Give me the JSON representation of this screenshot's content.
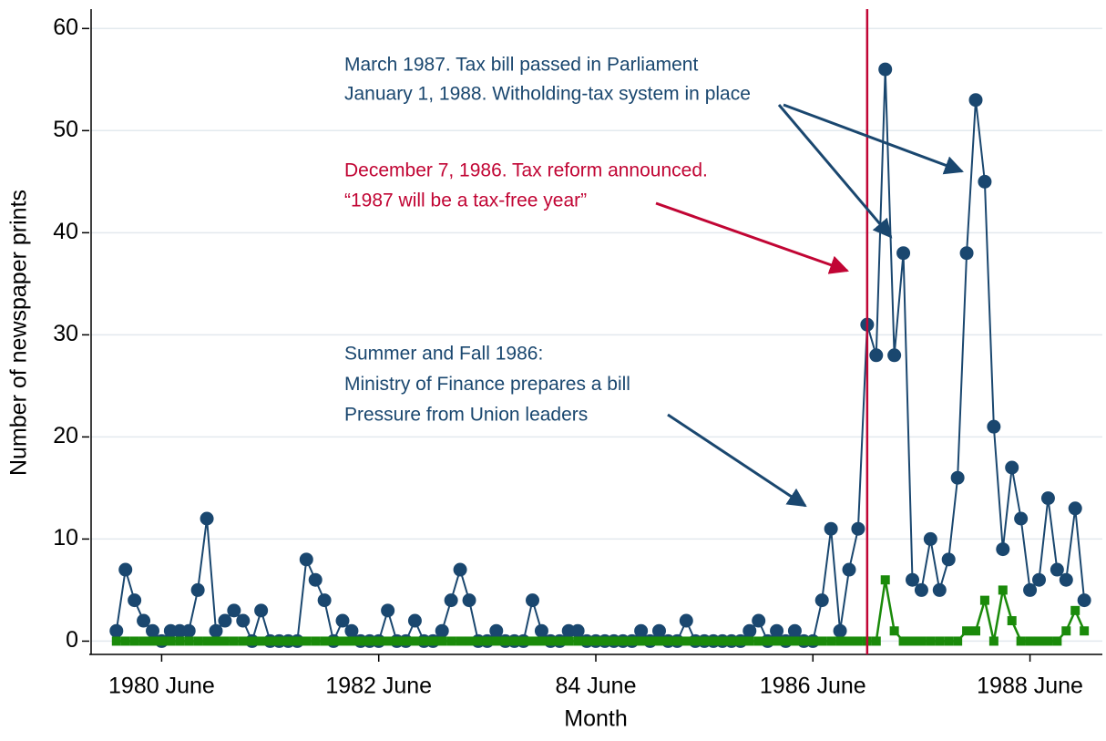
{
  "chart_data": {
    "type": "line",
    "x_label": "Month",
    "y_label": "Number of newspaper prints",
    "xlim": [
      "1979-10",
      "1989-02"
    ],
    "ylim": [
      -1.3,
      61.9
    ],
    "xticks": [
      {
        "value": "1980-06",
        "label": "1980 June"
      },
      {
        "value": "1982-06",
        "label": "1982 June"
      },
      {
        "value": "1984-06",
        "label": "84 June"
      },
      {
        "value": "1986-06",
        "label": "1986 June"
      },
      {
        "value": "1988-06",
        "label": "1988 June"
      }
    ],
    "yticks": [
      0,
      10,
      20,
      30,
      40,
      50,
      60
    ],
    "grid": true,
    "x": [
      "1980-01",
      "1980-02",
      "1980-03",
      "1980-04",
      "1980-05",
      "1980-06",
      "1980-07",
      "1980-08",
      "1980-09",
      "1980-10",
      "1980-11",
      "1980-12",
      "1981-01",
      "1981-02",
      "1981-03",
      "1981-04",
      "1981-05",
      "1981-06",
      "1981-07",
      "1981-08",
      "1981-09",
      "1981-10",
      "1981-11",
      "1981-12",
      "1982-01",
      "1982-02",
      "1982-03",
      "1982-04",
      "1982-05",
      "1982-06",
      "1982-07",
      "1982-08",
      "1982-09",
      "1982-10",
      "1982-11",
      "1982-12",
      "1983-01",
      "1983-02",
      "1983-03",
      "1983-04",
      "1983-05",
      "1983-06",
      "1983-07",
      "1983-08",
      "1983-09",
      "1983-10",
      "1983-11",
      "1983-12",
      "1984-01",
      "1984-02",
      "1984-03",
      "1984-04",
      "1984-05",
      "1984-06",
      "1984-07",
      "1984-08",
      "1984-09",
      "1984-10",
      "1984-11",
      "1984-12",
      "1985-01",
      "1985-02",
      "1985-03",
      "1985-04",
      "1985-05",
      "1985-06",
      "1985-07",
      "1985-08",
      "1985-09",
      "1985-10",
      "1985-11",
      "1985-12",
      "1986-01",
      "1986-02",
      "1986-03",
      "1986-04",
      "1986-05",
      "1986-06",
      "1986-07",
      "1986-08",
      "1986-09",
      "1986-10",
      "1986-11",
      "1986-12",
      "1987-01",
      "1987-02",
      "1987-03",
      "1987-04",
      "1987-05",
      "1987-06",
      "1987-07",
      "1987-08",
      "1987-09",
      "1987-10",
      "1987-11",
      "1987-12",
      "1988-01",
      "1988-02",
      "1988-03",
      "1988-04",
      "1988-05",
      "1988-06",
      "1988-07",
      "1988-08",
      "1988-09",
      "1988-10",
      "1988-11",
      "1988-12"
    ],
    "series": [
      {
        "color": "#1a476f",
        "marker": "circle",
        "values": [
          1,
          7,
          4,
          2,
          1,
          0,
          1,
          1,
          1,
          5,
          12,
          1,
          2,
          3,
          2,
          0,
          3,
          0,
          0,
          0,
          0,
          8,
          6,
          4,
          0,
          2,
          1,
          0,
          0,
          0,
          3,
          0,
          0,
          2,
          0,
          0,
          1,
          4,
          7,
          4,
          0,
          0,
          1,
          0,
          0,
          0,
          4,
          1,
          0,
          0,
          1,
          1,
          0,
          0,
          0,
          0,
          0,
          0,
          1,
          0,
          1,
          0,
          0,
          2,
          0,
          0,
          0,
          0,
          0,
          0,
          1,
          2,
          0,
          1,
          0,
          1,
          0,
          0,
          4,
          11,
          1,
          7,
          11,
          31,
          28,
          56,
          28,
          38,
          6,
          5,
          10,
          5,
          8,
          16,
          38,
          53,
          45,
          21,
          9,
          17,
          12,
          5,
          6,
          14,
          7,
          6,
          13,
          4
        ]
      },
      {
        "color": "#1a8a0a",
        "marker": "square",
        "values": [
          0,
          0,
          0,
          0,
          0,
          0,
          0,
          0,
          0,
          0,
          0,
          0,
          0,
          0,
          0,
          0,
          0,
          0,
          0,
          0,
          0,
          0,
          0,
          0,
          0,
          0,
          0,
          0,
          0,
          0,
          0,
          0,
          0,
          0,
          0,
          0,
          0,
          0,
          0,
          0,
          0,
          0,
          0,
          0,
          0,
          0,
          0,
          0,
          0,
          0,
          0,
          0,
          0,
          0,
          0,
          0,
          0,
          0,
          0,
          0,
          0,
          0,
          0,
          0,
          0,
          0,
          0,
          0,
          0,
          0,
          0,
          0,
          0,
          0,
          0,
          0,
          0,
          0,
          0,
          0,
          0,
          0,
          0,
          0,
          0,
          6,
          1,
          0,
          0,
          0,
          0,
          0,
          0,
          0,
          1,
          1,
          4,
          0,
          5,
          2,
          0,
          0,
          0,
          0,
          0,
          1,
          3,
          1
        ]
      }
    ],
    "vline": {
      "x": "1986-12",
      "color": "#c10534"
    },
    "annotations": [
      {
        "color": "#1a476f",
        "lines": [
          "March 1987. Tax bill passed in Parliament",
          "January 1, 1988. Witholding-tax system in place"
        ]
      },
      {
        "color": "#c10534",
        "lines": [
          "December 7, 1986. Tax reform announced.",
          "“1987 will be a tax-free year”"
        ]
      },
      {
        "color": "#1a476f",
        "lines": [
          "Summer and Fall 1986:",
          "Ministry of Finance prepares a bill",
          "Pressure from Union leaders"
        ]
      }
    ]
  }
}
